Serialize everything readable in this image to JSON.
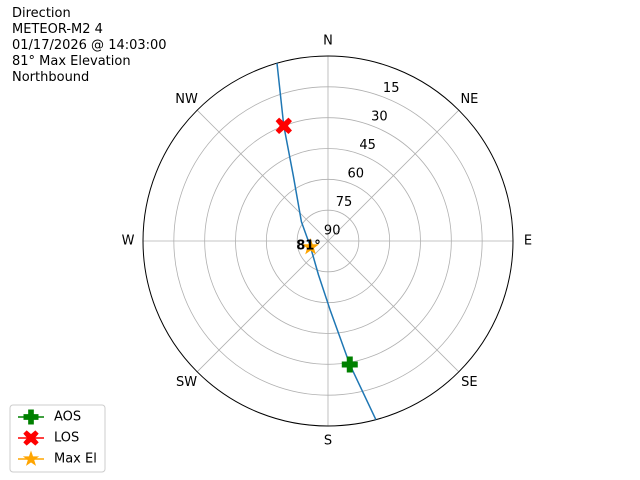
{
  "chart_data": {
    "type": "polar",
    "title_lines": [
      "Direction",
      "METEOR-M2 4",
      "01/17/2026 @ 14:03:00",
      "81° Max Elevation",
      "Northbound"
    ],
    "xticks": [
      {
        "value": 0,
        "label": "N"
      },
      {
        "value": 45,
        "label": "NE"
      },
      {
        "value": 90,
        "label": "E"
      },
      {
        "value": 135,
        "label": "SE"
      },
      {
        "value": 180,
        "label": "S"
      },
      {
        "value": 225,
        "label": "SW"
      },
      {
        "value": 270,
        "label": "W"
      },
      {
        "value": 315,
        "label": "NW"
      }
    ],
    "ylim": [
      90,
      0
    ],
    "yticks": [
      90,
      75,
      60,
      45,
      30,
      15
    ],
    "grid": true,
    "track": {
      "color": "#1f77b4",
      "x": [
        344,
        339,
        332,
        306,
        251,
        196,
        178,
        170,
        165
      ],
      "values": [
        0,
        30,
        54,
        74,
        81,
        73,
        56,
        29,
        0
      ]
    },
    "series": [
      {
        "name": "AOS",
        "color": "#008000",
        "marker": "plus",
        "x": [
          170
        ],
        "values": [
          29
        ]
      },
      {
        "name": "LOS",
        "color": "#ff0000",
        "marker": "x",
        "x": [
          339
        ],
        "values": [
          30
        ]
      },
      {
        "name": "Max El",
        "color": "#ffa500",
        "marker": "star",
        "x": [
          251
        ],
        "values": [
          81
        ]
      }
    ],
    "annotation": "81°",
    "legend": "lower left"
  }
}
